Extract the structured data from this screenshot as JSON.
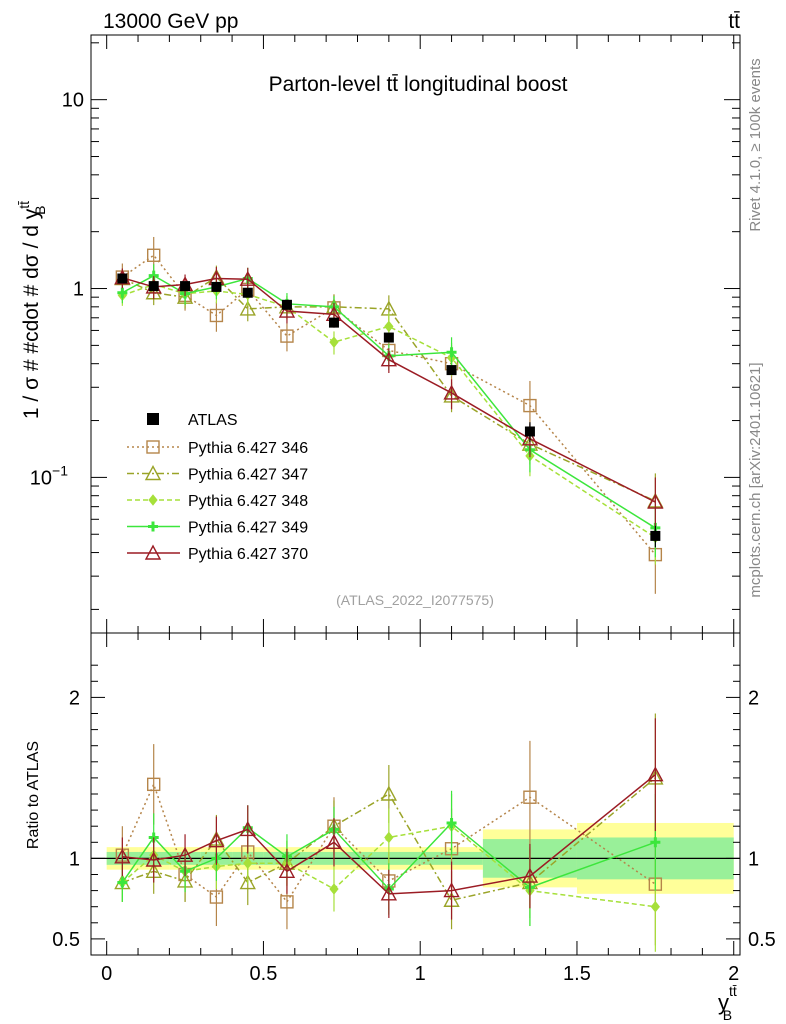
{
  "header": {
    "energy": "13000 GeV pp",
    "process": "tt̄",
    "side_rivet": "Rivet 4.1.0, ≥ 100k events",
    "side_mcplots": "mcplots.cern.ch [arXiv:2401.10621]"
  },
  "chart_data": {
    "type": "line",
    "title": "Parton-level tt̄ longitudinal boost",
    "analysis_id": "(ATLAS_2022_I2077575)",
    "xlabel": "y_B^{tt̄}",
    "xlabel_main": "y",
    "xlabel_sup": "tt̄",
    "xlabel_sub": "B",
    "ylabel": "1 / σ # #cdot # dσ / d y_B^{tt̄}",
    "ylabel_main": "1 / σ # #cdot # dσ / d y",
    "ylabel_sup": "tt̄",
    "ylabel_sub": "B",
    "ratio_ylabel": "Ratio to ATLAS",
    "xlim": [
      -0.05,
      2.02
    ],
    "ylim": [
      0.015,
      22
    ],
    "yscale": "log",
    "ratio_ylim": [
      0.4,
      2.4
    ],
    "x_ticks": [
      {
        "v": 0,
        "label": "0"
      },
      {
        "v": 0.5,
        "label": "0.5"
      },
      {
        "v": 1,
        "label": "1"
      },
      {
        "v": 1.5,
        "label": "1.5"
      },
      {
        "v": 2,
        "label": "2"
      }
    ],
    "y_ticks": [
      {
        "v": 0.1,
        "label": "10^{-1}",
        "base": "10",
        "exp": "−1"
      },
      {
        "v": 1,
        "label": "1",
        "base": "1",
        "exp": ""
      },
      {
        "v": 10,
        "label": "10",
        "base": "10",
        "exp": ""
      }
    ],
    "ratio_ticks": [
      {
        "v": 0.5,
        "label": "0.5"
      },
      {
        "v": 1,
        "label": "1"
      },
      {
        "v": 2,
        "label": "2"
      }
    ],
    "bins": [
      {
        "x": 0.05,
        "lo": 0.0,
        "hi": 0.1
      },
      {
        "x": 0.15,
        "lo": 0.1,
        "hi": 0.2
      },
      {
        "x": 0.25,
        "lo": 0.2,
        "hi": 0.3
      },
      {
        "x": 0.35,
        "lo": 0.3,
        "hi": 0.4
      },
      {
        "x": 0.45,
        "lo": 0.4,
        "hi": 0.5
      },
      {
        "x": 0.575,
        "lo": 0.5,
        "hi": 0.65
      },
      {
        "x": 0.725,
        "lo": 0.65,
        "hi": 0.8
      },
      {
        "x": 0.9,
        "lo": 0.8,
        "hi": 1.0
      },
      {
        "x": 1.1,
        "lo": 1.0,
        "hi": 1.2
      },
      {
        "x": 1.35,
        "lo": 1.2,
        "hi": 1.5
      },
      {
        "x": 1.75,
        "lo": 1.5,
        "hi": 2.0
      }
    ],
    "data": {
      "name": "ATLAS",
      "color": "#000000",
      "values": [
        1.13,
        1.03,
        1.03,
        1.02,
        0.95,
        0.82,
        0.66,
        0.55,
        0.37,
        0.175,
        0.049
      ],
      "band_inner": [
        0.04,
        0.04,
        0.04,
        0.04,
        0.04,
        0.04,
        0.04,
        0.04,
        0.04,
        0.12,
        0.13
      ],
      "band_outer": [
        0.07,
        0.07,
        0.07,
        0.07,
        0.07,
        0.07,
        0.07,
        0.07,
        0.07,
        0.18,
        0.22
      ]
    },
    "series": [
      {
        "name": "Pythia 6.427 346",
        "color": "#b5854a",
        "dash": "2,3",
        "marker": "square",
        "values": [
          1.15,
          1.5,
          0.92,
          0.72,
          0.99,
          0.56,
          0.79,
          0.47,
          0.4,
          0.24,
          0.039
        ],
        "ratio": [
          1.02,
          1.46,
          0.9,
          0.76,
          1.04,
          0.73,
          1.2,
          0.86,
          1.06,
          1.38,
          0.84
        ],
        "ratio_err": [
          0.18,
          0.25,
          0.17,
          0.18,
          0.2,
          0.17,
          0.18,
          0.18,
          0.25,
          0.35,
          0.38
        ]
      },
      {
        "name": "Pythia 6.427 347",
        "color": "#9aa428",
        "dash": "7,3,2,3",
        "marker": "triangle",
        "values": [
          1.13,
          0.95,
          0.9,
          1.15,
          0.78,
          0.8,
          0.8,
          0.78,
          0.27,
          0.15,
          0.075
        ],
        "ratio": [
          0.85,
          0.92,
          0.86,
          1.12,
          0.85,
          0.97,
          1.2,
          1.4,
          0.74,
          0.85,
          1.5
        ],
        "ratio_err": [
          0.12,
          0.14,
          0.13,
          0.15,
          0.14,
          0.14,
          0.16,
          0.18,
          0.18,
          0.22,
          0.4
        ]
      },
      {
        "name": "Pythia 6.427 348",
        "color": "#a6e03a",
        "dash": "5,3",
        "marker": "diamond",
        "values": [
          0.92,
          1.05,
          0.94,
          0.97,
          0.93,
          0.8,
          0.52,
          0.63,
          0.43,
          0.13,
          0.048
        ],
        "ratio": [
          0.85,
          1.02,
          0.92,
          0.95,
          0.97,
          0.97,
          0.81,
          1.13,
          1.2,
          0.8,
          0.7
        ],
        "ratio_err": [
          0.12,
          0.14,
          0.13,
          0.14,
          0.13,
          0.14,
          0.14,
          0.18,
          0.2,
          0.22,
          0.28
        ]
      },
      {
        "name": "Pythia 6.427 349",
        "color": "#3ce63c",
        "dash": "",
        "marker": "cross",
        "values": [
          0.95,
          1.17,
          0.94,
          1.02,
          1.13,
          0.83,
          0.8,
          0.44,
          0.46,
          0.14,
          0.054
        ],
        "ratio": [
          0.85,
          1.13,
          0.92,
          1.0,
          1.19,
          1.01,
          1.18,
          0.81,
          1.22,
          0.82,
          1.1
        ],
        "ratio_err": [
          0.12,
          0.15,
          0.13,
          0.14,
          0.14,
          0.14,
          0.14,
          0.16,
          0.2,
          0.24,
          0.3
        ]
      },
      {
        "name": "Pythia 6.427 370",
        "color": "#9b1c24",
        "dash": "",
        "marker": "triangle",
        "values": [
          1.14,
          1.02,
          1.05,
          1.13,
          1.12,
          0.76,
          0.73,
          0.42,
          0.28,
          0.16,
          0.074
        ],
        "ratio": [
          1.01,
          0.99,
          1.02,
          1.11,
          1.18,
          0.92,
          1.1,
          0.78,
          0.8,
          0.89,
          1.52
        ],
        "ratio_err": [
          0.12,
          0.14,
          0.13,
          0.15,
          0.15,
          0.14,
          0.15,
          0.15,
          0.18,
          0.2,
          0.35
        ]
      }
    ]
  }
}
